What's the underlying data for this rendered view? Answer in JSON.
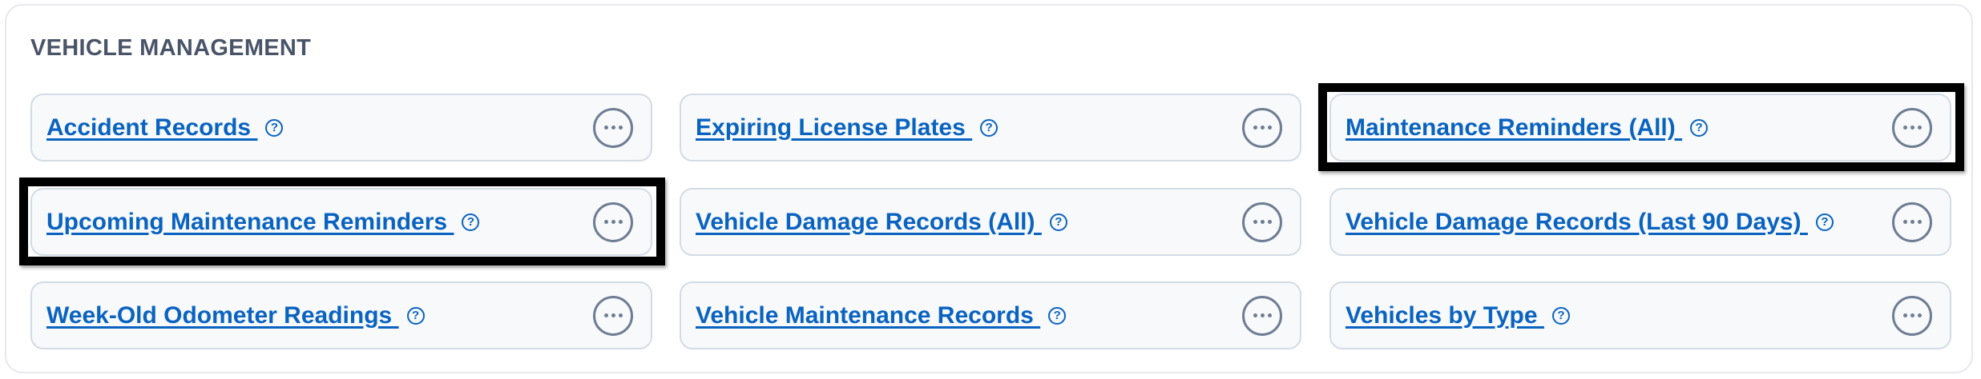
{
  "section": {
    "title": "VEHICLE MANAGEMENT",
    "reports": [
      {
        "label": "Accident Records ",
        "highlighted": false
      },
      {
        "label": "Expiring License Plates ",
        "highlighted": false
      },
      {
        "label": "Maintenance Reminders (All) ",
        "highlighted": true
      },
      {
        "label": "Upcoming Maintenance Reminders ",
        "highlighted": true
      },
      {
        "label": "Vehicle Damage Records (All) ",
        "highlighted": false
      },
      {
        "label": "Vehicle Damage Records (Last 90 Days) ",
        "highlighted": false
      },
      {
        "label": "Week-Old Odometer Readings ",
        "highlighted": false
      },
      {
        "label": "Vehicle Maintenance Records ",
        "highlighted": false
      },
      {
        "label": "Vehicles by Type ",
        "highlighted": false
      }
    ],
    "help_glyph": "?",
    "icons": {
      "help": "question-circle-icon",
      "more": "ellipsis-circle-icon"
    },
    "colors": {
      "link": "#0a63c0",
      "title": "#4a5468",
      "highlight": "#000000"
    }
  }
}
